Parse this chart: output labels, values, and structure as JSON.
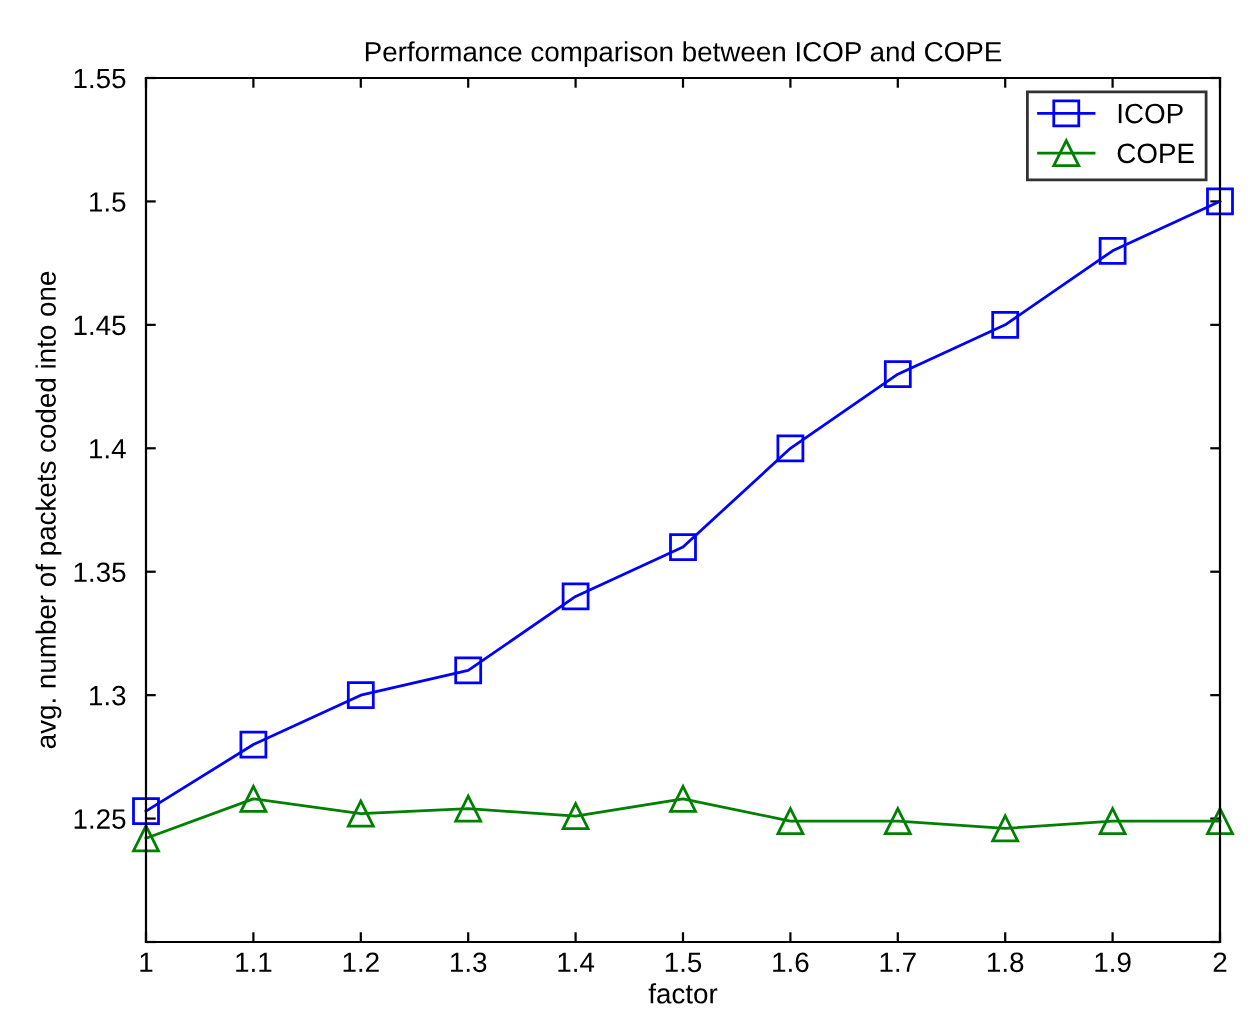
{
  "chart_data": {
    "type": "line",
    "title": "Performance comparison between ICOP and COPE",
    "xlabel": "factor",
    "ylabel": "avg. number of packets coded into one",
    "x": [
      1,
      1.1,
      1.2,
      1.3,
      1.4,
      1.5,
      1.6,
      1.7,
      1.8,
      1.9,
      2
    ],
    "series": [
      {
        "name": "ICOP",
        "color": "#0000ff",
        "marker": "square",
        "values": [
          1.253,
          1.28,
          1.3,
          1.31,
          1.34,
          1.36,
          1.4,
          1.43,
          1.45,
          1.48,
          1.5
        ]
      },
      {
        "name": "COPE",
        "color": "#008000",
        "marker": "triangle",
        "values": [
          1.242,
          1.258,
          1.252,
          1.254,
          1.251,
          1.258,
          1.249,
          1.249,
          1.246,
          1.249,
          1.249
        ]
      }
    ],
    "xlim": [
      1,
      2
    ],
    "xticks": [
      1,
      1.1,
      1.2,
      1.3,
      1.4,
      1.5,
      1.6,
      1.7,
      1.8,
      1.9,
      2
    ],
    "ylim": [
      1.2,
      1.55
    ],
    "yticks": [
      {
        "value": 1.2,
        "label": null
      },
      1.25,
      1.3,
      1.35,
      1.4,
      1.45,
      1.5,
      1.55
    ],
    "legend": "top right",
    "grid": false,
    "line_style": "solid"
  }
}
